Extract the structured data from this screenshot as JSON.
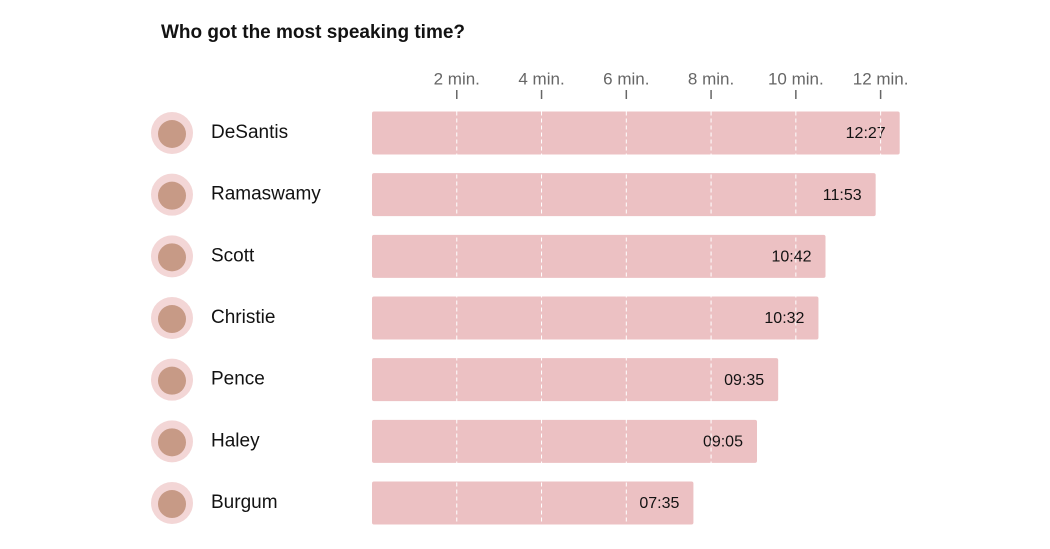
{
  "chart_data": {
    "type": "hbar",
    "title": "Who got the most speaking time?",
    "categories": [
      "DeSantis",
      "Ramaswamy",
      "Scott",
      "Christie",
      "Pence",
      "Haley",
      "Burgum"
    ],
    "values": [
      12.45,
      11.8833,
      10.7,
      10.5333,
      9.5833,
      9.0833,
      7.5833
    ],
    "value_labels": [
      "12:27",
      "11:53",
      "10:42",
      "10:32",
      "09:35",
      "09:05",
      "07:35"
    ],
    "color": "#ecc1c3",
    "xlim": [
      0,
      13
    ],
    "xticks": [
      {
        "value": 2,
        "label": "2 min."
      },
      {
        "value": 4,
        "label": "4 min."
      },
      {
        "value": 6,
        "label": "6 min."
      },
      {
        "value": 8,
        "label": "8 min."
      },
      {
        "value": 10,
        "label": "10 min."
      },
      {
        "value": 12,
        "label": "12 min."
      }
    ],
    "grid": true
  }
}
